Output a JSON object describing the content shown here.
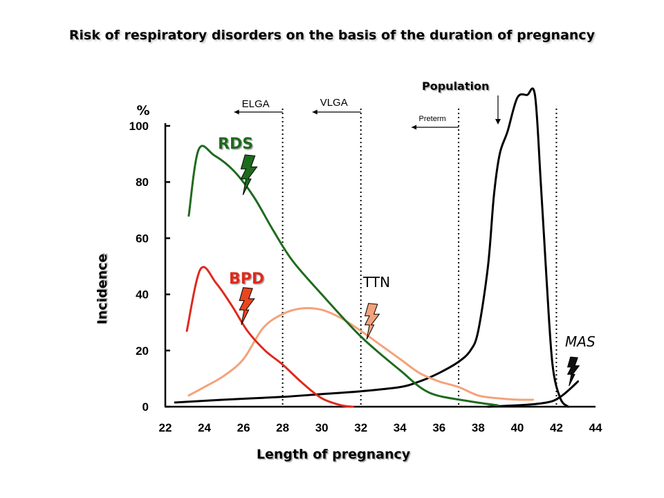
{
  "title": "Risk of respiratory disorders on the basis of the duration of pregnancy",
  "chart_data": {
    "type": "line",
    "xlabel": "Length of pregnancy",
    "ylabel": "Incidence",
    "y_unit": "%",
    "xlim": [
      22,
      44
    ],
    "ylim": [
      0,
      100
    ],
    "x_ticks": [
      22,
      24,
      26,
      28,
      30,
      32,
      34,
      36,
      38,
      40,
      42,
      44
    ],
    "y_ticks": [
      0,
      20,
      40,
      60,
      80,
      100
    ],
    "grid": false,
    "thresholds": [
      {
        "x": 28,
        "label": "ELGA"
      },
      {
        "x": 32,
        "label": "VLGA"
      },
      {
        "x": 37,
        "label": "Preterm"
      },
      {
        "x": 42,
        "label": ""
      }
    ],
    "series": [
      {
        "name": "RDS",
        "color": "#1e6b1e",
        "points": [
          [
            23.2,
            68
          ],
          [
            23.7,
            91.5
          ],
          [
            24.5,
            89.5
          ],
          [
            25.5,
            84
          ],
          [
            26.5,
            75
          ],
          [
            27.5,
            63
          ],
          [
            28.5,
            52
          ],
          [
            30,
            40
          ],
          [
            32,
            25
          ],
          [
            34,
            13
          ],
          [
            35.5,
            5
          ],
          [
            37.5,
            2
          ],
          [
            39,
            0.5
          ]
        ]
      },
      {
        "name": "BPD",
        "color": "#dd2a1e",
        "points": [
          [
            23.1,
            27
          ],
          [
            23.8,
            49
          ],
          [
            24.6,
            44
          ],
          [
            25.4,
            36
          ],
          [
            26.2,
            27
          ],
          [
            27.1,
            20
          ],
          [
            28,
            15
          ],
          [
            29,
            8.5
          ],
          [
            30,
            3
          ],
          [
            31,
            0.5
          ],
          [
            31.6,
            0
          ]
        ]
      },
      {
        "name": "TTN",
        "color": "#f4a27a",
        "points": [
          [
            23.2,
            4
          ],
          [
            24,
            7
          ],
          [
            25,
            11
          ],
          [
            26,
            17
          ],
          [
            27,
            28
          ],
          [
            28,
            33
          ],
          [
            29,
            35
          ],
          [
            30,
            34.5
          ],
          [
            31,
            31.5
          ],
          [
            32,
            27
          ],
          [
            33,
            22
          ],
          [
            34,
            17
          ],
          [
            35,
            12
          ],
          [
            36,
            9
          ],
          [
            37,
            7
          ],
          [
            38,
            4
          ],
          [
            39,
            3
          ],
          [
            40,
            2.5
          ],
          [
            40.8,
            2.5
          ]
        ]
      },
      {
        "name": "Population",
        "color": "#000000",
        "points": [
          [
            22.5,
            1.5
          ],
          [
            25,
            2.5
          ],
          [
            28,
            3.5
          ],
          [
            30,
            4.5
          ],
          [
            32,
            5.5
          ],
          [
            34,
            7
          ],
          [
            35,
            9
          ],
          [
            36,
            12
          ],
          [
            37,
            16
          ],
          [
            37.6,
            20
          ],
          [
            38,
            27
          ],
          [
            38.5,
            50
          ],
          [
            38.8,
            75
          ],
          [
            39.1,
            90
          ],
          [
            39.5,
            98
          ],
          [
            40,
            110
          ],
          [
            40.5,
            111
          ],
          [
            40.9,
            111
          ],
          [
            41.2,
            80
          ],
          [
            41.5,
            45
          ],
          [
            41.8,
            15
          ],
          [
            42.2,
            3
          ],
          [
            42.6,
            0
          ]
        ]
      },
      {
        "name": "MAS",
        "color": "#000000",
        "points": [
          [
            38.5,
            0
          ],
          [
            40,
            0.5
          ],
          [
            41,
            1
          ],
          [
            41.8,
            2
          ],
          [
            42.3,
            4
          ],
          [
            42.8,
            7
          ],
          [
            43.1,
            9
          ]
        ]
      }
    ],
    "annotations": [
      {
        "text": "RDS",
        "color": "#1e6b1e"
      },
      {
        "text": "BPD",
        "color": "#dd2a1e"
      },
      {
        "text": "TTN",
        "color": "#000000"
      },
      {
        "text": "MAS",
        "color": "#000000"
      },
      {
        "text": "Population",
        "color": "#000000"
      }
    ]
  }
}
